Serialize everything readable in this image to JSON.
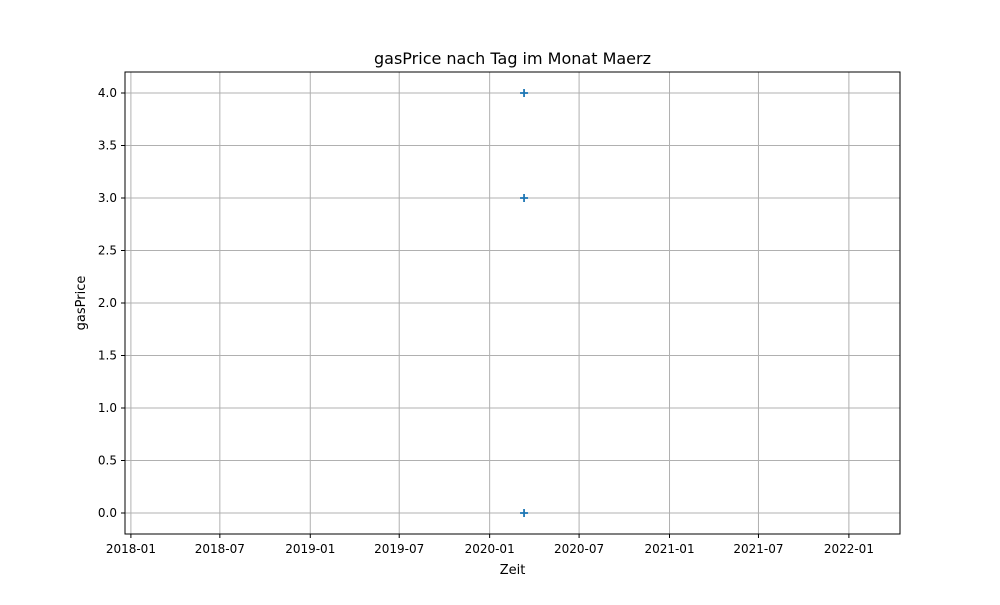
{
  "chart_data": {
    "type": "scatter",
    "title": "gasPrice nach Tag im Monat Maerz",
    "xlabel": "Zeit",
    "ylabel": "gasPrice",
    "x_axis_type": "date",
    "xlim": [
      "2017-12-20",
      "2022-04-15"
    ],
    "ylim": [
      -0.2,
      4.2
    ],
    "x_ticks": [
      {
        "value": "2018-01-01",
        "label": "2018-01"
      },
      {
        "value": "2018-07-01",
        "label": "2018-07"
      },
      {
        "value": "2019-01-01",
        "label": "2019-01"
      },
      {
        "value": "2019-07-01",
        "label": "2019-07"
      },
      {
        "value": "2020-01-01",
        "label": "2020-01"
      },
      {
        "value": "2020-07-01",
        "label": "2020-07"
      },
      {
        "value": "2021-01-01",
        "label": "2021-01"
      },
      {
        "value": "2021-07-01",
        "label": "2021-07"
      },
      {
        "value": "2022-01-01",
        "label": "2022-01"
      }
    ],
    "y_ticks": [
      {
        "value": 0.0,
        "label": "0.0"
      },
      {
        "value": 0.5,
        "label": "0.5"
      },
      {
        "value": 1.0,
        "label": "1.0"
      },
      {
        "value": 1.5,
        "label": "1.5"
      },
      {
        "value": 2.0,
        "label": "2.0"
      },
      {
        "value": 2.5,
        "label": "2.5"
      },
      {
        "value": 3.0,
        "label": "3.0"
      },
      {
        "value": 3.5,
        "label": "3.5"
      },
      {
        "value": 4.0,
        "label": "4.0"
      }
    ],
    "grid": true,
    "marker": "plus",
    "marker_color": "#1f77b4",
    "grid_color": "#b0b0b0",
    "series": [
      {
        "points": [
          {
            "x": "2020-03-11",
            "y": 4.0
          },
          {
            "x": "2020-03-11",
            "y": 3.0
          },
          {
            "x": "2020-03-11",
            "y": 0.0
          }
        ]
      }
    ]
  }
}
